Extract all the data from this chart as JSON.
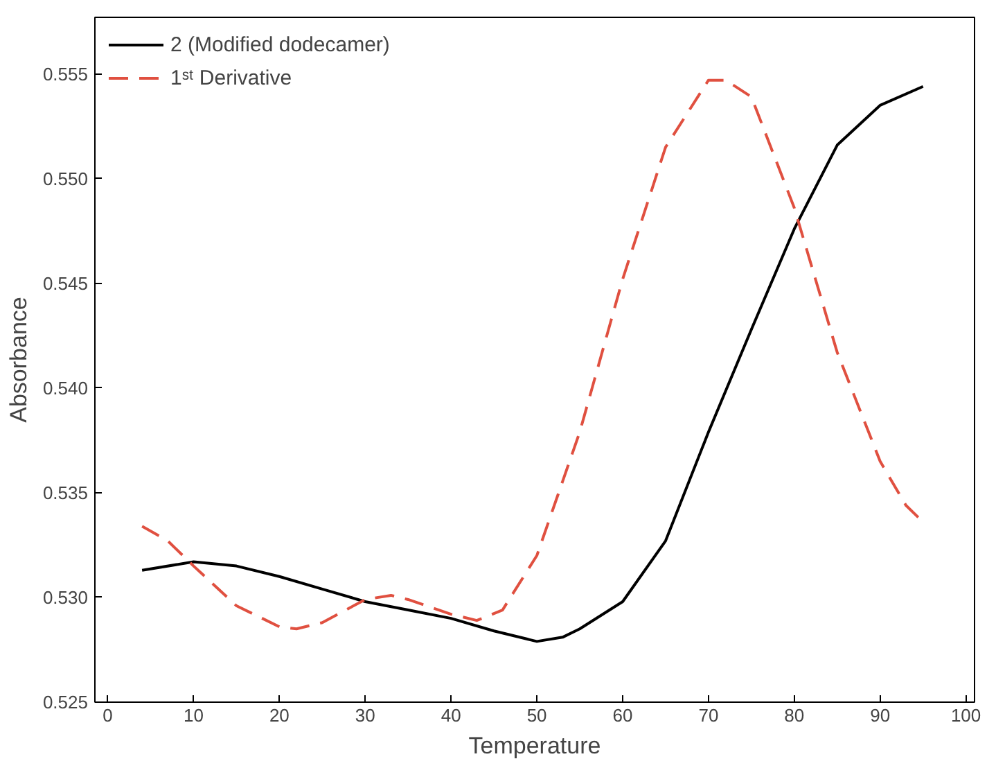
{
  "chart_data": {
    "type": "line",
    "xlabel": "Temperature",
    "ylabel": "Absorbance",
    "xlim": [
      -1.5,
      101
    ],
    "ylim": [
      0.525,
      0.5577
    ],
    "xticks": [
      0,
      10,
      20,
      30,
      40,
      50,
      60,
      70,
      80,
      90,
      100
    ],
    "yticks": [
      {
        "value": 0.525,
        "label": "0.525"
      },
      {
        "value": 0.53,
        "label": "0.530"
      },
      {
        "value": 0.535,
        "label": "0.535"
      },
      {
        "value": 0.54,
        "label": "0.540"
      },
      {
        "value": 0.545,
        "label": "0.545"
      },
      {
        "value": 0.55,
        "label": "0.550"
      },
      {
        "value": 0.555,
        "label": "0.555"
      }
    ],
    "grid": false,
    "legend": "top left",
    "marker": "none",
    "series": [
      {
        "name": "2 (Modified dodecamer)",
        "color": "#000000",
        "line_style": "solid",
        "x": [
          4,
          10,
          15,
          20,
          25,
          30,
          35,
          40,
          45,
          50,
          53,
          55,
          60,
          65,
          70,
          75,
          80,
          85,
          90,
          95
        ],
        "values": [
          0.5313,
          0.5317,
          0.5315,
          0.531,
          0.5304,
          0.5298,
          0.5294,
          0.529,
          0.5284,
          0.5279,
          0.5281,
          0.5285,
          0.5298,
          0.5327,
          0.5379,
          0.5428,
          0.5476,
          0.5516,
          0.5535,
          0.5544
        ]
      },
      {
        "name": "1ˢᵗ Derivative",
        "color": "#e05040",
        "line_style": "dashed",
        "x": [
          4,
          7,
          10,
          15,
          20,
          22,
          25,
          30,
          33,
          35,
          40,
          43,
          46,
          50,
          55,
          60,
          65,
          70,
          72,
          75,
          80,
          85,
          90,
          93,
          95
        ],
        "values": [
          0.5334,
          0.5327,
          0.5315,
          0.5296,
          0.5286,
          0.5285,
          0.5288,
          0.5299,
          0.5301,
          0.5299,
          0.5292,
          0.5289,
          0.5294,
          0.532,
          0.5379,
          0.5452,
          0.5515,
          0.5547,
          0.5547,
          0.5539,
          0.5486,
          0.5417,
          0.5365,
          0.5344,
          0.5336
        ]
      }
    ]
  }
}
